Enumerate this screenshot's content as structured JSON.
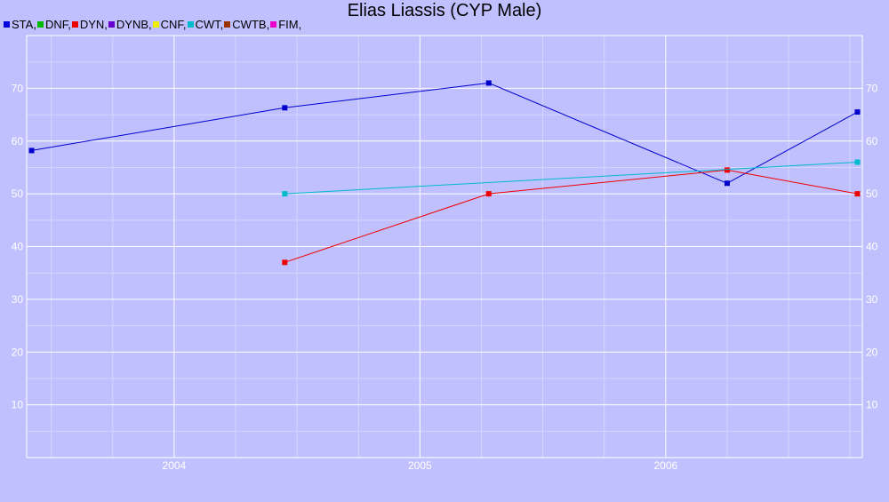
{
  "chart_data": {
    "type": "line",
    "title": "Elias Liassis (CYP Male)",
    "xlabel": "",
    "ylabel": "",
    "xlim": [
      2003.4,
      2006.8
    ],
    "ylim": [
      0,
      80
    ],
    "x_ticks": [
      2004,
      2005,
      2006
    ],
    "y_ticks": [
      10,
      20,
      30,
      40,
      50,
      60,
      70
    ],
    "grid": true,
    "legend_position": "top-left",
    "legend": [
      {
        "label": "STA,",
        "color": "#0000dd"
      },
      {
        "label": "DNF,",
        "color": "#00bb00"
      },
      {
        "label": "DYN,",
        "color": "#ee0000"
      },
      {
        "label": "DYNB,",
        "color": "#6600cc"
      },
      {
        "label": "CNF,",
        "color": "#eeee00"
      },
      {
        "label": "CWT,",
        "color": "#00bbcc"
      },
      {
        "label": "CWTB,",
        "color": "#993300"
      },
      {
        "label": "FIM,",
        "color": "#ee00cc"
      }
    ],
    "series": [
      {
        "name": "STA",
        "color": "#0000cc",
        "points": [
          [
            2003.42,
            58.2
          ],
          [
            2004.45,
            66.3
          ],
          [
            2005.28,
            71.0
          ],
          [
            2006.25,
            52.0
          ],
          [
            2006.78,
            65.5
          ]
        ]
      },
      {
        "name": "DYN",
        "color": "#ee0000",
        "points": [
          [
            2004.45,
            37.0
          ],
          [
            2005.28,
            50.0
          ],
          [
            2006.25,
            54.5
          ],
          [
            2006.78,
            50.0
          ]
        ]
      },
      {
        "name": "CWT",
        "color": "#00bbcc",
        "points": [
          [
            2004.45,
            50.0
          ],
          [
            2006.78,
            56.0
          ]
        ]
      }
    ]
  }
}
